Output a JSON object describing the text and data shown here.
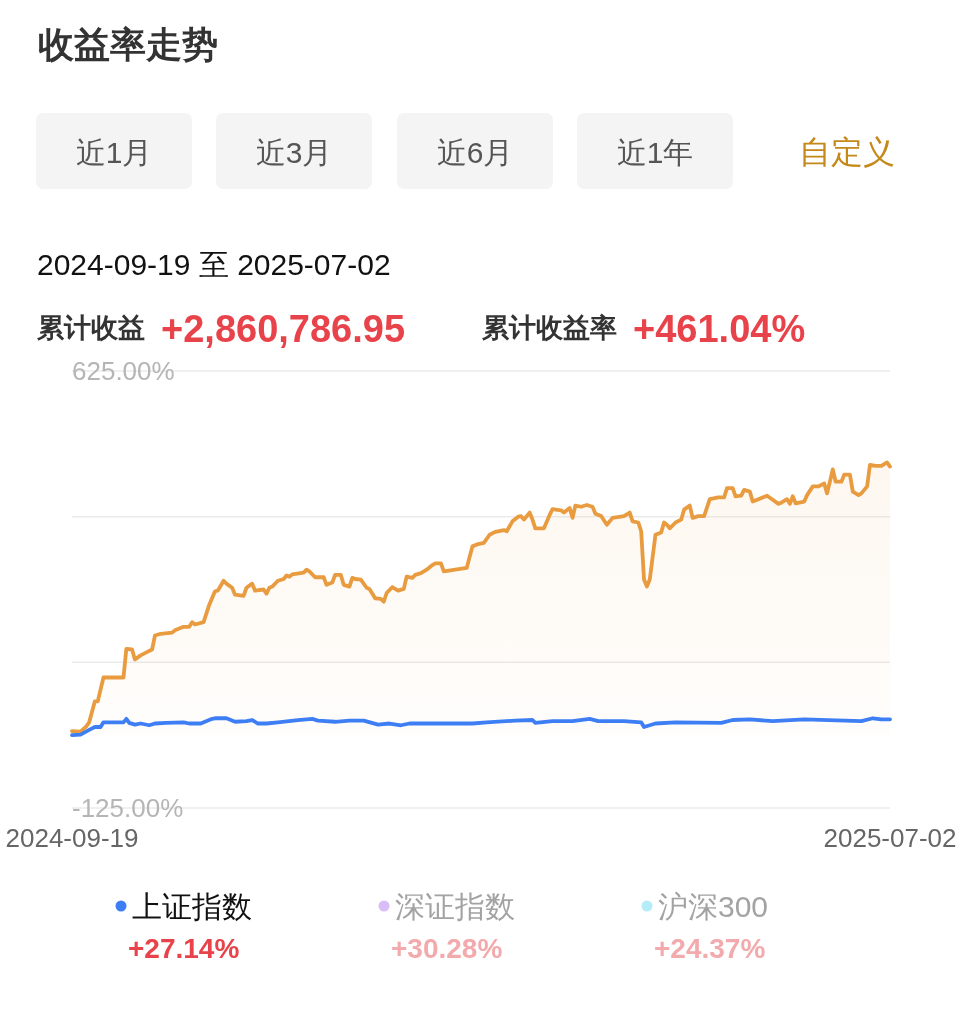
{
  "chart_data": {
    "type": "line",
    "title": "收益率走势",
    "subtitle": "2024-09-19 至 2025-07-02",
    "annotations": [
      "近1月",
      "近3月",
      "近6月",
      "近1年",
      "自定义",
      "累计收益",
      "+2,860,786.95",
      "累计收益率",
      "+461.04%",
      "+27.14%",
      "+30.28%",
      "+24.37%"
    ],
    "xlim": [
      "2024-09-19",
      "2025-07-02"
    ],
    "xticks": [
      "2024-09-19",
      "2025-07-02"
    ],
    "ylim": [
      -125,
      625
    ],
    "yticks": [
      {
        "value": 625,
        "label": "625.00%"
      },
      {
        "value": 375,
        "label": null
      },
      {
        "value": 125,
        "label": null
      },
      {
        "value": -125,
        "label": "-125.00%"
      }
    ],
    "grid": "y",
    "legend": "bottom",
    "series": [
      {
        "type": "area",
        "color": "#e99b3f",
        "x": [
          "2024-09-19",
          "2024-09-22",
          "2024-09-24",
          "2024-09-25",
          "2024-09-27",
          "2024-09-28",
          "2024-09-30",
          "2024-10-07",
          "2024-10-08",
          "2024-10-10",
          "2024-10-11",
          "2024-10-13",
          "2024-10-15",
          "2024-10-17",
          "2024-10-18",
          "2024-10-20",
          "2024-10-24",
          "2024-10-25",
          "2024-10-28",
          "2024-10-30",
          "2024-10-31",
          "2024-11-01",
          "2024-11-04",
          "2024-11-06",
          "2024-11-08",
          "2024-11-09",
          "2024-11-11",
          "2024-11-12",
          "2024-11-14",
          "2024-11-15",
          "2024-11-18",
          "2024-11-19",
          "2024-11-21",
          "2024-11-22",
          "2024-11-25",
          "2024-11-26",
          "2024-11-27",
          "2024-11-28",
          "2024-11-30",
          "2024-12-02",
          "2024-12-03",
          "2024-12-04",
          "2024-12-05",
          "2024-12-09",
          "2024-12-10",
          "2024-12-11",
          "2024-12-13",
          "2024-12-16",
          "2024-12-17",
          "2024-12-19",
          "2024-12-20",
          "2024-12-22",
          "2024-12-23",
          "2024-12-25",
          "2024-12-26",
          "2024-12-27",
          "2024-12-29",
          "2024-12-31",
          "2025-01-01",
          "2025-01-03",
          "2025-01-05",
          "2025-01-06",
          "2025-01-07",
          "2025-01-09",
          "2025-01-11",
          "2025-01-13",
          "2025-01-14",
          "2025-01-16",
          "2025-01-17",
          "2025-01-19",
          "2025-01-21",
          "2025-01-23",
          "2025-01-24",
          "2025-01-26",
          "2025-01-27",
          "2025-01-31",
          "2025-02-04",
          "2025-02-06",
          "2025-02-08",
          "2025-02-10",
          "2025-02-12",
          "2025-02-14",
          "2025-02-17",
          "2025-02-18",
          "2025-02-20",
          "2025-02-22",
          "2025-02-23",
          "2025-02-24",
          "2025-02-26",
          "2025-02-27",
          "2025-02-28",
          "2025-03-03",
          "2025-03-05",
          "2025-03-06",
          "2025-03-09",
          "2025-03-10",
          "2025-03-12",
          "2025-03-13",
          "2025-03-14",
          "2025-03-16",
          "2025-03-18",
          "2025-03-20",
          "2025-03-21",
          "2025-03-23",
          "2025-03-25",
          "2025-03-27",
          "2025-03-31",
          "2025-04-02",
          "2025-04-03",
          "2025-04-05",
          "2025-04-06",
          "2025-04-07",
          "2025-04-08",
          "2025-04-09",
          "2025-04-11",
          "2025-04-13",
          "2025-04-14",
          "2025-04-15",
          "2025-04-16",
          "2025-04-18",
          "2025-04-20",
          "2025-04-21",
          "2025-04-23",
          "2025-04-24",
          "2025-04-26",
          "2025-04-28",
          "2025-04-30",
          "2025-05-03",
          "2025-05-05",
          "2025-05-06",
          "2025-05-08",
          "2025-05-09",
          "2025-05-11",
          "2025-05-12",
          "2025-05-14",
          "2025-05-15",
          "2025-05-17",
          "2025-05-20",
          "2025-05-22",
          "2025-05-24",
          "2025-05-25",
          "2025-05-27",
          "2025-05-28",
          "2025-05-29",
          "2025-05-30",
          "2025-06-02",
          "2025-06-03",
          "2025-06-05",
          "2025-06-07",
          "2025-06-09",
          "2025-06-10",
          "2025-06-12",
          "2025-06-13",
          "2025-06-15",
          "2025-06-16",
          "2025-06-18",
          "2025-06-19",
          "2025-06-21",
          "2025-06-22",
          "2025-06-24",
          "2025-06-25",
          "2025-06-27",
          "2025-06-29",
          "2025-07-01",
          "2025-07-02"
        ],
        "values": [
          7,
          6,
          15,
          22,
          58,
          58,
          99,
          99,
          148,
          147,
          130,
          137,
          142,
          147,
          171,
          174,
          176,
          180,
          186,
          186,
          194,
          190,
          194,
          224,
          247,
          248,
          265,
          260,
          253,
          241,
          239,
          253,
          260,
          248,
          250,
          243,
          253,
          255,
          265,
          268,
          274,
          272,
          276,
          279,
          284,
          281,
          271,
          271,
          258,
          262,
          275,
          275,
          258,
          255,
          270,
          268,
          267,
          253,
          251,
          235,
          234,
          229,
          244,
          254,
          248,
          251,
          272,
          270,
          275,
          278,
          284,
          292,
          295,
          295,
          281,
          284,
          287,
          324,
          328,
          330,
          344,
          349,
          352,
          350,
          367,
          375,
          376,
          370,
          382,
          370,
          355,
          355,
          378,
          388,
          386,
          382,
          390,
          373,
          394,
          392,
          395,
          392,
          380,
          376,
          361,
          373,
          376,
          382,
          367,
          365,
          350,
          267,
          255,
          267,
          344,
          348,
          365,
          361,
          355,
          365,
          370,
          387,
          394,
          373,
          376,
          376,
          405,
          408,
          408,
          424,
          424,
          410,
          411,
          421,
          418,
          401,
          405,
          411,
          404,
          397,
          399,
          405,
          397,
          410,
          398,
          401,
          412,
          427,
          427,
          432,
          415,
          456,
          435,
          435,
          447,
          447,
          418,
          412,
          415,
          427,
          464,
          462,
          462,
          468,
          461.04
        ]
      },
      {
        "name": "上证指数",
        "color": "#3d7ef5",
        "x": [
          "2024-09-19",
          "2024-09-22",
          "2024-09-25",
          "2024-09-27",
          "2024-09-29",
          "2024-09-30",
          "2024-10-07",
          "2024-10-08",
          "2024-10-09",
          "2024-10-11",
          "2024-10-13",
          "2024-10-16",
          "2024-10-18",
          "2024-10-22",
          "2024-10-28",
          "2024-10-30",
          "2024-11-03",
          "2024-11-07",
          "2024-11-08",
          "2024-11-12",
          "2024-11-15",
          "2024-11-19",
          "2024-11-21",
          "2024-11-23",
          "2024-11-26",
          "2024-11-30",
          "2024-12-07",
          "2024-12-12",
          "2024-12-14",
          "2024-12-20",
          "2024-12-25",
          "2024-12-30",
          "2025-01-04",
          "2025-01-08",
          "2025-01-12",
          "2025-01-15",
          "2025-01-23",
          "2025-02-06",
          "2025-02-11",
          "2025-02-21",
          "2025-02-27",
          "2025-02-28",
          "2025-03-06",
          "2025-03-13",
          "2025-03-19",
          "2025-03-22",
          "2025-03-31",
          "2025-04-06",
          "2025-04-07",
          "2025-04-11",
          "2025-04-18",
          "2025-05-04",
          "2025-05-08",
          "2025-05-14",
          "2025-05-22",
          "2025-06-02",
          "2025-06-22",
          "2025-06-26",
          "2025-06-29",
          "2025-07-02"
        ],
        "values": [
          0,
          1,
          9,
          14,
          14,
          22,
          22,
          28,
          21,
          18,
          20,
          17,
          20,
          21,
          22,
          20,
          20,
          28,
          29,
          29,
          23,
          24,
          26,
          20,
          20,
          22,
          26,
          28,
          25,
          23,
          25,
          25,
          18,
          20,
          17,
          20,
          20,
          20,
          22,
          25,
          26,
          21,
          24,
          24,
          28,
          24,
          24,
          22,
          14,
          20,
          22,
          21,
          26,
          27,
          24,
          27,
          24,
          29,
          27,
          27.14
        ]
      },
      {
        "name": "深证指数",
        "color": "#d9bdf7"
      },
      {
        "name": "沪深300",
        "color": "#b4ecf9"
      }
    ]
  }
}
